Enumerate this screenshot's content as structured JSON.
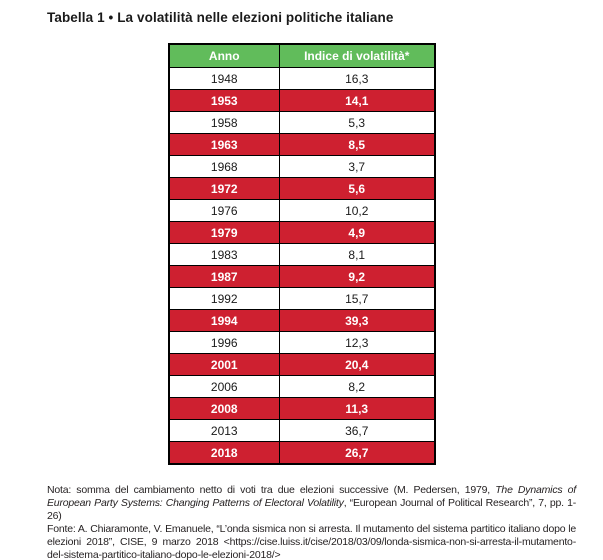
{
  "title": "Tabella 1 • La volatilità nelle elezioni politiche italiane",
  "table": {
    "headers": [
      "Anno",
      "Indice di volatilità*"
    ],
    "rows": [
      {
        "year": "1948",
        "value": "16,3",
        "highlight": false
      },
      {
        "year": "1953",
        "value": "14,1",
        "highlight": true
      },
      {
        "year": "1958",
        "value": "5,3",
        "highlight": false
      },
      {
        "year": "1963",
        "value": "8,5",
        "highlight": true
      },
      {
        "year": "1968",
        "value": "3,7",
        "highlight": false
      },
      {
        "year": "1972",
        "value": "5,6",
        "highlight": true
      },
      {
        "year": "1976",
        "value": "10,2",
        "highlight": false
      },
      {
        "year": "1979",
        "value": "4,9",
        "highlight": true
      },
      {
        "year": "1983",
        "value": "8,1",
        "highlight": false
      },
      {
        "year": "1987",
        "value": "9,2",
        "highlight": true
      },
      {
        "year": "1992",
        "value": "15,7",
        "highlight": false
      },
      {
        "year": "1994",
        "value": "39,3",
        "highlight": true
      },
      {
        "year": "1996",
        "value": "12,3",
        "highlight": false
      },
      {
        "year": "2001",
        "value": "20,4",
        "highlight": true
      },
      {
        "year": "2006",
        "value": "8,2",
        "highlight": false
      },
      {
        "year": "2008",
        "value": "11,3",
        "highlight": true
      },
      {
        "year": "2013",
        "value": "36,7",
        "highlight": false
      },
      {
        "year": "2018",
        "value": "26,7",
        "highlight": true
      }
    ]
  },
  "notes": {
    "nota_segments": [
      {
        "text": "Nota: somma del cambiamento netto di voti tra due elezioni successive (M. Pedersen, 1979, ",
        "italic": false
      },
      {
        "text": "The Dynamics of European Party Systems: Changing Patterns of Electoral Volatility",
        "italic": true
      },
      {
        "text": ", “European Journal of Political Research”, 7, pp. 1-26)",
        "italic": false
      }
    ],
    "fonte_segments": [
      {
        "text": "Fonte: A. Chiaramonte, V. Emanuele, “L’onda sismica non si arresta. Il mutamento del sistema partitico italiano dopo le elezioni 2018”, CISE, 9 marzo 2018 <https://cise.luiss.it/cise/2018/03/09/londa-sismica-non-si-arresta-il-mutamento-del-sistema-partitico-italiano-dopo-le-elezioni-2018/>",
        "italic": false
      }
    ]
  },
  "colors": {
    "header_green": "#61bc5b",
    "highlight_red": "#ce2030",
    "border_black": "#000000",
    "header_text": "#ffffff"
  }
}
